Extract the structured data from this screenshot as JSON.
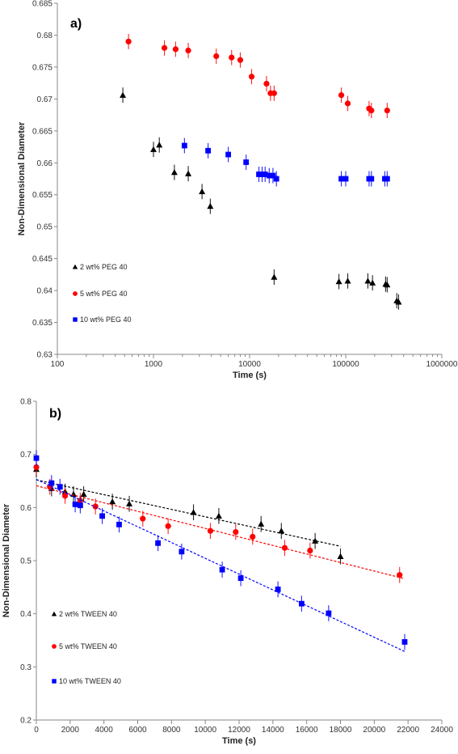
{
  "chart_data": [
    {
      "panel_label": "a)",
      "type": "scatter",
      "x_scale": "log",
      "xlim": [
        100,
        1000000
      ],
      "ylim": [
        0.63,
        0.685
      ],
      "xlabel": "Time (s)",
      "ylabel": "Non-Dimensional Diameter",
      "x_tick_values": [
        100,
        1000,
        10000,
        100000,
        1000000
      ],
      "x_tick_labels": [
        "100",
        "1000",
        "10000",
        "100000",
        "1000000"
      ],
      "y_tick_values": [
        0.63,
        0.635,
        0.64,
        0.645,
        0.65,
        0.655,
        0.66,
        0.665,
        0.67,
        0.675,
        0.68,
        0.685
      ],
      "y_tick_labels": [
        "0.63",
        "0.635",
        "0.64",
        "0.645",
        "0.65",
        "0.655",
        "0.66",
        "0.665",
        "0.67",
        "0.675",
        "0.68",
        "0.685"
      ],
      "legend_position": "lower-left",
      "series": [
        {
          "name": "2 wt% PEG 40",
          "marker": "triangle",
          "color": "#000000",
          "x": [
            480,
            1000,
            1150,
            1650,
            2300,
            3200,
            3900,
            18000,
            85000,
            105000,
            170000,
            190000,
            260000,
            270000,
            340000,
            355000
          ],
          "y": [
            0.6706,
            0.6621,
            0.6628,
            0.6585,
            0.6583,
            0.6555,
            0.6532,
            0.6421,
            0.6414,
            0.6415,
            0.6415,
            0.6412,
            0.641,
            0.6409,
            0.6384,
            0.6382
          ]
        },
        {
          "name": "5 wt% PEG 40",
          "marker": "circle",
          "color": "#ff0000",
          "x": [
            550,
            1300,
            1700,
            2300,
            4500,
            6500,
            8000,
            10500,
            15000,
            16500,
            18000,
            90000,
            105000,
            175000,
            185000,
            270000
          ],
          "y": [
            0.679,
            0.678,
            0.6778,
            0.6776,
            0.6767,
            0.6765,
            0.6761,
            0.6735,
            0.6724,
            0.6709,
            0.6709,
            0.6706,
            0.6693,
            0.6685,
            0.6682,
            0.6682
          ]
        },
        {
          "name": "10 wt% PEG 40",
          "marker": "square",
          "color": "#0000ff",
          "x": [
            2100,
            3700,
            6000,
            9200,
            12500,
            13500,
            14500,
            16000,
            17500,
            19000,
            90000,
            100000,
            175000,
            185000,
            255000,
            270000
          ],
          "y": [
            0.6627,
            0.6619,
            0.6613,
            0.6601,
            0.6582,
            0.6582,
            0.6582,
            0.658,
            0.658,
            0.6575,
            0.6575,
            0.6575,
            0.6575,
            0.6575,
            0.6575,
            0.6575
          ]
        }
      ]
    },
    {
      "panel_label": "b)",
      "type": "scatter",
      "x_scale": "linear",
      "xlim": [
        0,
        24000
      ],
      "ylim": [
        0.2,
        0.8
      ],
      "xlabel": "Time (s)",
      "ylabel": "Non-Dimensional Diameter",
      "x_tick_values": [
        0,
        2000,
        4000,
        6000,
        8000,
        10000,
        12000,
        14000,
        16000,
        18000,
        20000,
        22000,
        24000
      ],
      "x_tick_labels": [
        "0",
        "2000",
        "4000",
        "6000",
        "8000",
        "10000",
        "12000",
        "14000",
        "16000",
        "18000",
        "20000",
        "22000",
        "24000"
      ],
      "y_tick_values": [
        0.2,
        0.3,
        0.4,
        0.5,
        0.6,
        0.7,
        0.8
      ],
      "y_tick_labels": [
        "0.2",
        "0.3",
        "0.4",
        "0.5",
        "0.6",
        "0.7",
        "0.8"
      ],
      "legend_position": "lower-left",
      "series": [
        {
          "name": "2 wt% TWEEN 40",
          "marker": "triangle",
          "color": "#000000",
          "x": [
            0,
            900,
            1700,
            2200,
            2800,
            4500,
            5500,
            9300,
            10800,
            13300,
            14500,
            16500,
            18000
          ],
          "y": [
            0.672,
            0.636,
            0.63,
            0.625,
            0.625,
            0.611,
            0.607,
            0.591,
            0.584,
            0.569,
            0.556,
            0.537,
            0.508
          ],
          "trend": [
            [
              0,
              0.652
            ],
            [
              18000,
              0.527
            ]
          ]
        },
        {
          "name": "5 wt% TWEEN 40",
          "marker": "circle",
          "color": "#ff0000",
          "x": [
            0,
            800,
            1700,
            2600,
            3500,
            6300,
            7800,
            10300,
            11800,
            12800,
            14700,
            16200,
            21500
          ],
          "y": [
            0.676,
            0.639,
            0.622,
            0.613,
            0.602,
            0.579,
            0.565,
            0.556,
            0.554,
            0.545,
            0.524,
            0.519,
            0.473
          ],
          "trend": [
            [
              0,
              0.641
            ],
            [
              21800,
              0.466
            ]
          ]
        },
        {
          "name": "10 wt% TWEEN 40",
          "marker": "square",
          "color": "#0000ff",
          "x": [
            0,
            900,
            1400,
            2300,
            2600,
            3900,
            4900,
            7200,
            8600,
            11000,
            12100,
            14300,
            15700,
            17300,
            21800
          ],
          "y": [
            0.693,
            0.646,
            0.639,
            0.606,
            0.604,
            0.584,
            0.568,
            0.533,
            0.517,
            0.483,
            0.467,
            0.446,
            0.419,
            0.401,
            0.347
          ],
          "trend": [
            [
              0,
              0.653
            ],
            [
              21800,
              0.329
            ]
          ]
        }
      ]
    }
  ]
}
